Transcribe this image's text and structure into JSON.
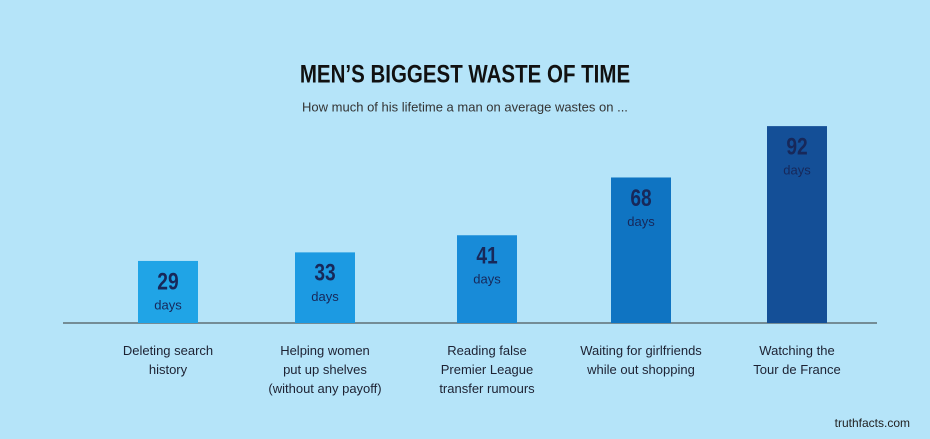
{
  "chart_data": {
    "type": "bar",
    "title": "MEN’S BIGGEST WASTE OF TIME",
    "subtitle": "How much of his lifetime a man on average wastes on ...",
    "categories": [
      "Deleting search\nhistory",
      "Helping women\nput up shelves\n(without any payoff)",
      "Reading false\nPremier League\ntransfer rumours",
      "Waiting for girlfriends\nwhile out shopping",
      "Watching the\nTour de France"
    ],
    "values": [
      29,
      33,
      41,
      68,
      92
    ],
    "unit": "days",
    "colors": [
      "#20a4e6",
      "#1c9ae2",
      "#188bd8",
      "#0f74c2",
      "#144f97"
    ],
    "source": "truthfacts.com"
  }
}
